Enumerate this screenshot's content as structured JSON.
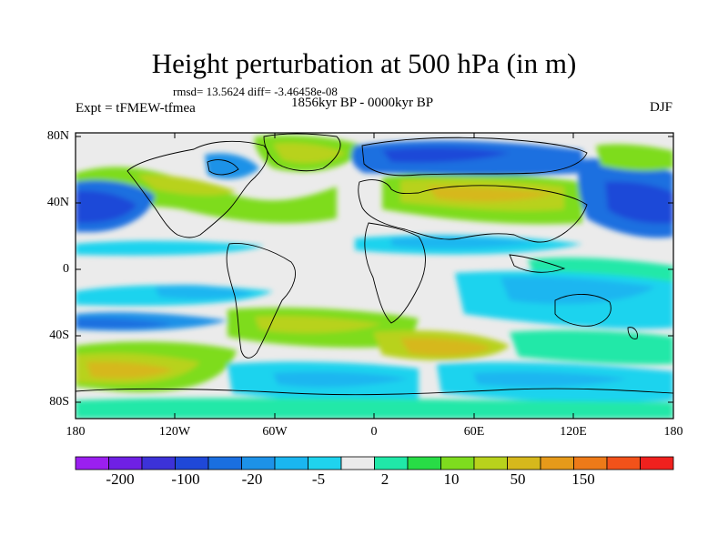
{
  "header": {
    "title": "Height perturbation at 500 hPa (in m)",
    "stats": "rmsd= 13.5624 diff= -3.46458e-08",
    "period": "1856kyr BP - 0000kyr BP",
    "experiment": "Expt = tFMEW-tfmea",
    "season": "DJF"
  },
  "map": {
    "projection": "cylindrical equidistant",
    "lat_ticks": [
      "80N",
      "40N",
      "0",
      "40S",
      "80S"
    ],
    "lon_ticks": [
      "180",
      "120W",
      "60W",
      "0",
      "60E",
      "120E",
      "180"
    ],
    "background": "#ebebeb",
    "coastline_color": "#000000"
  },
  "colorbar": {
    "colors": [
      "#9b1ff0",
      "#6f20e4",
      "#3c32d8",
      "#1f48d8",
      "#1a6fe0",
      "#1d92e8",
      "#1ab6f0",
      "#1fd3ee",
      "#ebebeb",
      "#20e8a8",
      "#28dc46",
      "#7edc1e",
      "#b8d21c",
      "#d6b81c",
      "#e69a1a",
      "#ee7a18",
      "#f2521a",
      "#f0211e"
    ],
    "labels": [
      "-200",
      "-100",
      "-20",
      "-5",
      "2",
      "10",
      "50",
      "150"
    ]
  }
}
